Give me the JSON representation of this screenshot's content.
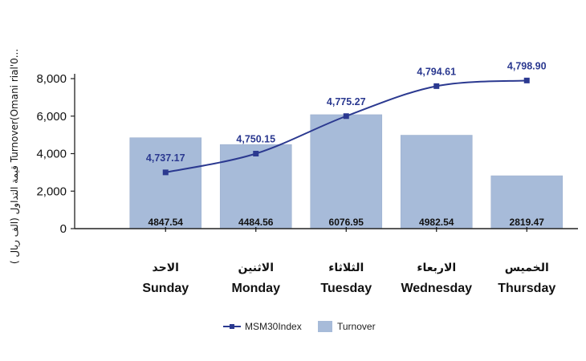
{
  "chart_data": {
    "type": "bar",
    "categories": [
      {
        "ar": "الاحد",
        "en": "Sunday"
      },
      {
        "ar": "الاثنين",
        "en": "Monday"
      },
      {
        "ar": "الثلاثاء",
        "en": "Tuesday"
      },
      {
        "ar": "الاربعاء",
        "en": "Wednesday"
      },
      {
        "ar": "الخميس",
        "en": "Thursday"
      }
    ],
    "ylabel": "( قيمة التداول (الف ريال Turnover(Omani rial'0...",
    "ylim": [
      0,
      8000
    ],
    "yticks": [
      "0",
      "2,000",
      "4,000",
      "6,000",
      "8,000"
    ],
    "series": [
      {
        "name": "Turnover",
        "type": "bar",
        "color": "#a7bbd9",
        "values": [
          4847.54,
          4484.56,
          6076.95,
          4982.54,
          2819.47
        ],
        "labels": [
          "4847.54",
          "4484.56",
          "6076.95",
          "4982.54",
          "2819.47"
        ]
      },
      {
        "name": "MSM30Index",
        "type": "line",
        "color": "#2b3990",
        "values": [
          4737.17,
          4750.15,
          4775.27,
          4794.61,
          4798.9
        ],
        "labels": [
          "4,737.17",
          "4,750.15",
          "4,775.27",
          "4,794.61",
          "4,798.90"
        ],
        "plotted_on_turnover_scale": [
          3000,
          4000,
          6000,
          7600,
          7900
        ]
      }
    ],
    "legend": {
      "placement": "bottom",
      "items": [
        {
          "label": "MSM30Index",
          "marker": "line-square",
          "color": "#2b3990"
        },
        {
          "label": "Turnover",
          "marker": "box",
          "color": "#a7bbd9"
        }
      ]
    },
    "grid": false
  }
}
